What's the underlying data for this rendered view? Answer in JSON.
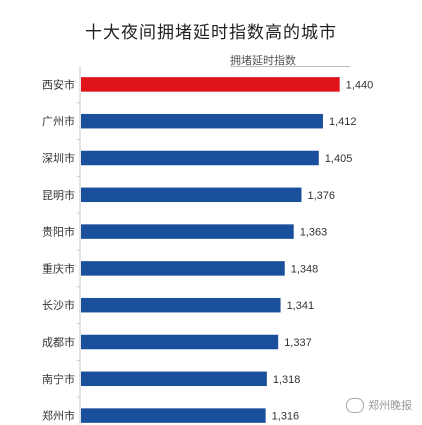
{
  "chart_data": {
    "type": "bar",
    "orientation": "horizontal",
    "title": "十大夜间拥堵延时指数高的城市",
    "series_label": "拥堵延时指数",
    "categories": [
      "西安市",
      "广州市",
      "深圳市",
      "昆明市",
      "贵阳市",
      "重庆市",
      "长沙市",
      "成都市",
      "南宁市",
      "郑州市"
    ],
    "values": [
      1.44,
      1.412,
      1.405,
      1.376,
      1.363,
      1.348,
      1.341,
      1.337,
      1.318,
      1.316
    ],
    "value_labels": [
      "1,440",
      "1,412",
      "1,405",
      "1,376",
      "1,363",
      "1,348",
      "1,341",
      "1,337",
      "1,318",
      "1,316"
    ],
    "highlight_index": 0,
    "colors": {
      "highlight": "#e0121a",
      "bar": "#1a4f9c",
      "axis": "#c8c8c8"
    },
    "grid": false
  },
  "watermark": {
    "text": "郑州晚报"
  }
}
